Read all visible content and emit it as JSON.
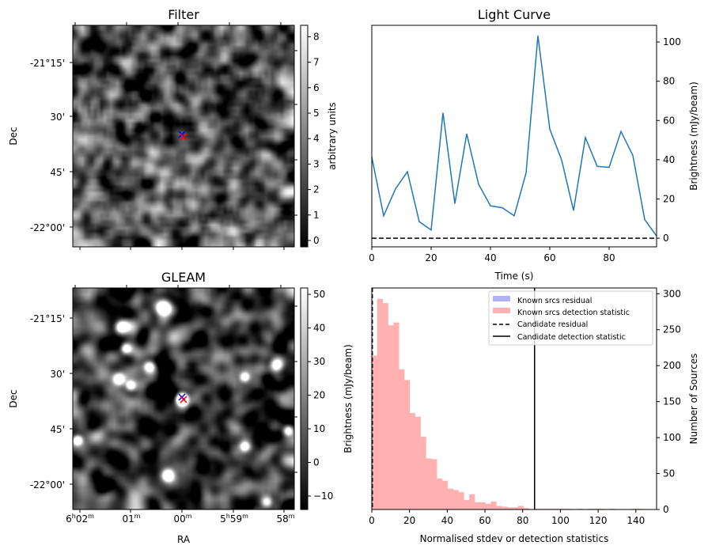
{
  "chart_data": [
    {
      "type": "heatmap",
      "title": "Filter",
      "ylabel": "Dec",
      "yticks": [
        "-21°15'",
        "30'",
        "45'",
        "-22°00'"
      ],
      "colorbar": {
        "label": "arbitrary units",
        "ticks": [
          "0",
          "1",
          "2",
          "3",
          "4",
          "5",
          "6",
          "7",
          "8"
        ],
        "range": [
          -0.25,
          8.45
        ]
      },
      "markers": [
        {
          "color": "#0000ff",
          "symbol": "x"
        },
        {
          "color": "#ff0000",
          "symbol": "x"
        }
      ]
    },
    {
      "type": "line",
      "title": "Light Curve",
      "xlabel": "Time (s)",
      "ylabel": "Brightness (mJy/beam)",
      "xlim": [
        0,
        96
      ],
      "ylim": [
        -4.4,
        108.5
      ],
      "xticks": [
        "0",
        "20",
        "40",
        "60",
        "80"
      ],
      "yticks": [
        "0",
        "20",
        "40",
        "60",
        "80",
        "100"
      ],
      "x": [
        0,
        4,
        8,
        12,
        16,
        20,
        24,
        28,
        32,
        36,
        40,
        44,
        48,
        52,
        56,
        60,
        64,
        68,
        72,
        76,
        80,
        84,
        88,
        92,
        96
      ],
      "y": [
        41.3,
        11.4,
        25.2,
        33.9,
        8.4,
        4.2,
        63.9,
        17.6,
        53.2,
        27.5,
        16.5,
        15.5,
        11.4,
        33.2,
        103.2,
        55.6,
        39.8,
        14.1,
        51.3,
        36.6,
        36.1,
        54.4,
        42.2,
        9.5,
        1.1
      ],
      "line_color": "#1f77b4",
      "baseline": 0
    },
    {
      "type": "heatmap",
      "title": "GLEAM",
      "xlabel": "RA",
      "ylabel": "Dec",
      "xticks": [
        "6h02m",
        "01m",
        "00m",
        "5h59m",
        "58m"
      ],
      "yticks": [
        "-21°15'",
        "30'",
        "45'",
        "-22°00'"
      ],
      "colorbar": {
        "label": "Brightness (mJy/beam)",
        "ticks": [
          "50",
          "40",
          "30",
          "20",
          "10",
          "0",
          "−10"
        ],
        "range": [
          -14,
          51.9
        ]
      },
      "markers": [
        {
          "color": "#0000ff",
          "symbol": "x"
        },
        {
          "color": "#ff0000",
          "symbol": "x"
        }
      ]
    },
    {
      "type": "bar",
      "xlabel": "Normalised stdev or detection statistics",
      "ylabel": "Number of Sources",
      "xlim": [
        0,
        151
      ],
      "ylim": [
        0,
        308
      ],
      "xticks": [
        "0",
        "20",
        "40",
        "60",
        "80",
        "100",
        "120",
        "140"
      ],
      "yticks": [
        "0",
        "50",
        "100",
        "150",
        "200",
        "250",
        "300"
      ],
      "bin_width": 2.87,
      "counts": [
        214,
        293,
        287,
        256,
        260,
        195,
        180,
        134,
        129,
        101,
        71,
        70,
        43,
        40,
        29,
        27,
        24,
        13,
        21,
        10,
        10,
        8,
        11,
        5,
        4,
        3,
        3,
        5,
        2,
        0,
        1,
        1,
        1,
        1,
        1,
        1,
        1,
        0,
        1,
        0,
        1,
        1,
        1,
        0,
        1,
        0,
        0,
        0,
        1,
        1
      ],
      "bar_color": "#ffb0b0",
      "candidate_residual": 0.3,
      "candidate_detection": 86.3,
      "legend": {
        "position": "top-right",
        "entries": [
          {
            "label": "Known srcs residual",
            "color": "#b0b0ff",
            "kind": "patch"
          },
          {
            "label": "Known srcs detection statistic",
            "color": "#ffb0b0",
            "kind": "patch"
          },
          {
            "label": "Candidate residual",
            "color": "#000000",
            "kind": "dashed"
          },
          {
            "label": "Candidate detection statistic",
            "color": "#000000",
            "kind": "solid"
          }
        ]
      }
    }
  ]
}
